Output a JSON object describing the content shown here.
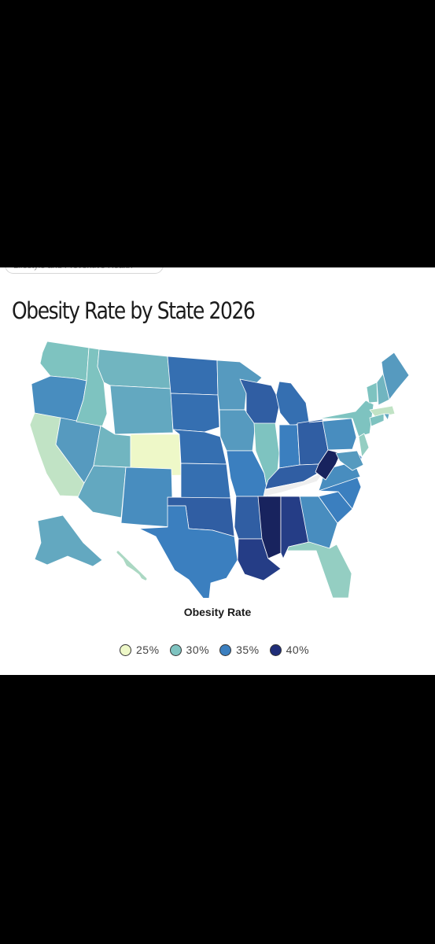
{
  "page": {
    "background": "#000000",
    "card_background": "#ffffff",
    "previous_chip_text": "Lifestyle and Preventive Health"
  },
  "map": {
    "title": "Obesity Rate by State 2026",
    "type": "choropleth",
    "region": "United States",
    "missing_data_color": "#eeeeee",
    "color_scale": [
      {
        "label": "25%",
        "color": "#eef8c8"
      },
      {
        "label": "30%",
        "color": "#7ec3c0"
      },
      {
        "label": "35%",
        "color": "#3b7fbf"
      },
      {
        "label": "40%",
        "color": "#1f2d78"
      }
    ]
  },
  "legend": {
    "title": "Obesity Rate",
    "items": [
      {
        "label": "25%",
        "color": "#eef8c8"
      },
      {
        "label": "30%",
        "color": "#7ec3c0"
      },
      {
        "label": "35%",
        "color": "#3b7fbf"
      },
      {
        "label": "40%",
        "color": "#1f2d78"
      }
    ]
  },
  "chart_data": {
    "type": "choropleth",
    "title": "Obesity Rate by State 2026",
    "legend_title": "Obesity Rate",
    "legend_ticks": [
      "25%",
      "30%",
      "35%",
      "40%"
    ],
    "legend_placement": "bottom",
    "unit": "percent",
    "states": {
      "WA": 30,
      "OR": 34,
      "CA": 27,
      "NV": 33,
      "ID": 30,
      "MT": 31,
      "WY": 32,
      "UT": 31,
      "AZ": 32,
      "CO": 25,
      "NM": 34,
      "ND": 36,
      "SD": 36,
      "NE": 36,
      "KS": 36,
      "OK": 37,
      "TX": 35,
      "MN": 33,
      "IA": 33,
      "MO": 35,
      "AR": 37,
      "LA": 39,
      "WI": 37,
      "IL": 30,
      "MI": 36,
      "IN": 35,
      "OH": 37,
      "KY": 37,
      "TN": null,
      "MS": 40,
      "AL": 39,
      "GA": 34,
      "FL": 29,
      "SC": 35,
      "NC": 35,
      "VA": 34,
      "WV": 41,
      "PA": 34,
      "NY": 30,
      "VT": 30,
      "NH": 31,
      "ME": 33,
      "MA": 27,
      "RI": 32,
      "CT": 30,
      "NJ": 29,
      "DE": 35,
      "MD": 33,
      "AK": 32,
      "HI": 28
    }
  }
}
